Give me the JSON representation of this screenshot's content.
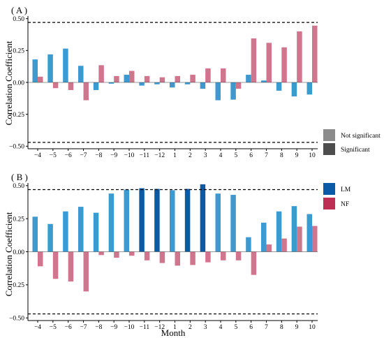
{
  "chart_data": [
    {
      "panel": "( A )",
      "type": "bar",
      "categories": [
        "−4",
        "−5",
        "−6",
        "−7",
        "−8",
        "−9",
        "−10",
        "−11",
        "−12",
        "1",
        "2",
        "3",
        "4",
        "5",
        "6",
        "7",
        "8",
        "9",
        "10"
      ],
      "series": [
        {
          "key": "LM",
          "values": [
            0.18,
            0.22,
            0.265,
            0.13,
            -0.06,
            -0.01,
            0.06,
            -0.025,
            -0.015,
            -0.04,
            -0.015,
            -0.05,
            -0.14,
            -0.135,
            0.06,
            0.015,
            -0.065,
            -0.11,
            -0.095
          ]
        },
        {
          "key": "NF",
          "values": [
            0.045,
            -0.045,
            -0.06,
            -0.14,
            0.135,
            0.05,
            0.09,
            0.05,
            0.04,
            0.05,
            0.06,
            0.11,
            0.11,
            -0.05,
            0.345,
            0.31,
            0.275,
            0.4,
            0.445
          ]
        }
      ],
      "ylabel": "Correlation Coefficient",
      "xlabel": "",
      "ylim": [
        -0.52,
        0.52
      ],
      "yticks": [
        "−0.50",
        "−0.25",
        "0.00",
        "0.25",
        "0.50"
      ],
      "significance_threshold": 0.47,
      "grid": false
    },
    {
      "panel": "( B )",
      "type": "bar",
      "categories": [
        "−4",
        "−5",
        "−6",
        "−7",
        "−8",
        "−9",
        "−10",
        "−11",
        "−12",
        "1",
        "2",
        "3",
        "4",
        "5",
        "6",
        "7",
        "8",
        "9",
        "10"
      ],
      "series": [
        {
          "key": "LM",
          "values": [
            0.265,
            0.21,
            0.305,
            0.34,
            0.295,
            0.44,
            0.47,
            0.48,
            0.475,
            0.465,
            0.475,
            0.51,
            0.44,
            0.43,
            0.11,
            0.22,
            0.305,
            0.345,
            0.285
          ]
        },
        {
          "key": "NF",
          "values": [
            -0.11,
            -0.205,
            -0.225,
            -0.3,
            -0.025,
            -0.045,
            -0.03,
            -0.065,
            -0.085,
            -0.105,
            -0.1,
            -0.08,
            -0.065,
            -0.065,
            -0.175,
            0.055,
            0.1,
            0.19,
            0.195
          ]
        }
      ],
      "significant": {
        "LM": [
          false,
          false,
          false,
          false,
          false,
          false,
          false,
          true,
          true,
          false,
          true,
          true,
          false,
          false,
          false,
          false,
          false,
          false,
          false
        ],
        "NF": [
          false,
          false,
          false,
          false,
          false,
          false,
          false,
          false,
          false,
          false,
          false,
          false,
          false,
          false,
          false,
          false,
          false,
          false,
          false
        ]
      },
      "ylabel": "Correlation Coefficient",
      "xlabel": "Month",
      "ylim": [
        -0.52,
        0.52
      ],
      "yticks": [
        "−0.50",
        "−0.25",
        "0.00",
        "0.25",
        "0.50"
      ],
      "significance_threshold": 0.47,
      "grid": false
    }
  ],
  "legend_significance": {
    "items": [
      {
        "label": "Not significant",
        "color": "#8c8c8c"
      },
      {
        "label": "Significant",
        "color": "#4d4d4d"
      }
    ]
  },
  "legend_series": {
    "items": [
      {
        "label": "LM",
        "color": "#0b5aa8"
      },
      {
        "label": "NF",
        "color": "#be2f55"
      }
    ]
  },
  "colors": {
    "LM_not_significant": "#3d9ad1",
    "LM_significant": "#0b5aa8",
    "NF_not_significant": "#d0758e",
    "NF_significant": "#be2f55"
  }
}
